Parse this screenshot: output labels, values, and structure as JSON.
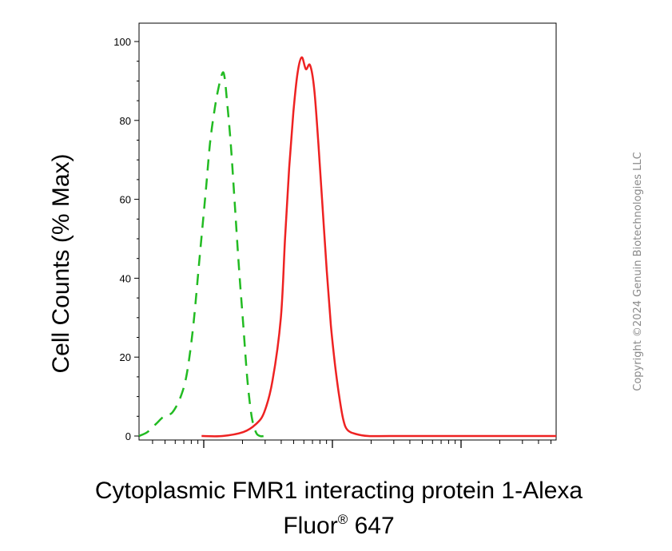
{
  "chart_data": {
    "type": "line",
    "xlabel_line1": "Cytoplasmic FMR1 interacting protein 1-Alexa",
    "xlabel_line2_prefix": "Fluor",
    "xlabel_line2_sup": "®",
    "xlabel_line2_suffix": " 647",
    "ylabel": "Cell Counts (% Max)",
    "ylim": [
      0,
      100
    ],
    "yticks": [
      "0",
      "20",
      "40",
      "60",
      "80",
      "100"
    ],
    "ytick_values": [
      0,
      20,
      40,
      60,
      80,
      100
    ],
    "xscale": "log",
    "grid": false,
    "series": [
      {
        "style": "dashed",
        "color": "#22bb22",
        "x": [
          0.0,
          0.02,
          0.04,
          0.06,
          0.08,
          0.1,
          0.115,
          0.13,
          0.145,
          0.16,
          0.17,
          0.18,
          0.19,
          0.2,
          0.205,
          0.21,
          0.22,
          0.23,
          0.24,
          0.25,
          0.26,
          0.27,
          0.28,
          0.29,
          0.3
        ],
        "values": [
          0,
          1,
          3,
          5,
          6,
          10,
          16,
          28,
          45,
          62,
          74,
          82,
          88,
          92,
          91,
          86,
          74,
          58,
          42,
          28,
          14,
          5,
          1,
          0,
          0
        ]
      },
      {
        "style": "solid",
        "color": "#ee2222",
        "x": [
          0.15,
          0.2,
          0.25,
          0.28,
          0.3,
          0.32,
          0.34,
          0.35,
          0.36,
          0.37,
          0.38,
          0.39,
          0.4,
          0.41,
          0.42,
          0.43,
          0.44,
          0.45,
          0.46,
          0.47,
          0.48,
          0.49,
          0.5,
          0.52,
          0.55,
          0.6,
          0.7,
          0.8,
          0.9,
          1.0
        ],
        "values": [
          0,
          0,
          1,
          3,
          6,
          14,
          30,
          50,
          68,
          82,
          92,
          96,
          93,
          94,
          88,
          74,
          58,
          42,
          28,
          18,
          10,
          4,
          1.5,
          0.5,
          0,
          0,
          0,
          0,
          0,
          0
        ]
      }
    ]
  },
  "credit": "Copyright ©2024 Genuin Biotechnologies LLC"
}
